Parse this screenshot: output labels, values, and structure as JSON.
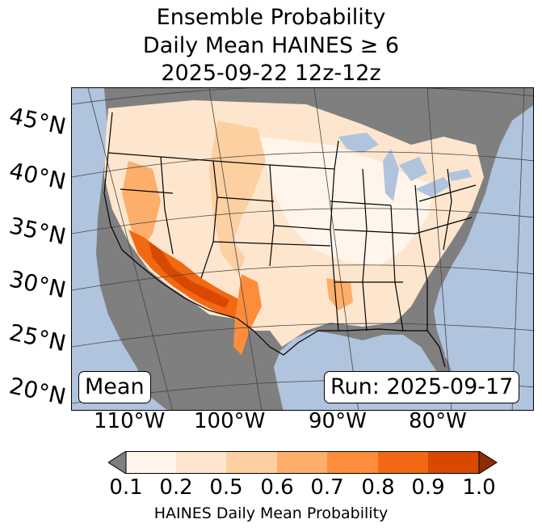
{
  "title": {
    "line1": "Ensemble Probability",
    "line2": "Daily Mean HAINES ≥ 6",
    "line3": "2025-09-22 12z-12z"
  },
  "lat_labels": [
    "45°N",
    "40°N",
    "35°N",
    "30°N",
    "25°N",
    "20°N"
  ],
  "lon_labels": [
    "110°W",
    "100°W",
    "90°W",
    "80°W"
  ],
  "mean_label": "Mean",
  "run_label": "Run: 2025-09-17",
  "colorbar": {
    "label": "HAINES Daily Mean Probability",
    "ticks": [
      "0.1",
      "0.2",
      "0.5",
      "0.6",
      "0.7",
      "0.8",
      "0.9",
      "1.0"
    ],
    "under_color": "#7f7f7f",
    "colors": [
      "#fff5eb",
      "#fee6ce",
      "#fdd0a2",
      "#fdae6b",
      "#fd8d3c",
      "#f16913",
      "#d94801"
    ],
    "over_color": "#8c2d04"
  },
  "colors": {
    "ocean": "#b0c4de",
    "land_below_threshold": "#7f7f7f"
  }
}
